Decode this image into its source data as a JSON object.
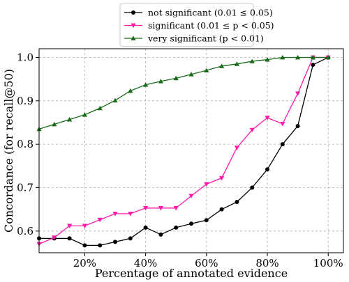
{
  "chart_data": {
    "type": "line",
    "xlabel": "Percentage of annotated evidence",
    "ylabel": "Concordance (for recall@50)",
    "xlim": [
      0.5,
      10.5
    ],
    "ylim": [
      0.55,
      1.02
    ],
    "x_ticks": [
      2,
      4,
      6,
      8,
      10
    ],
    "x_tick_labels": [
      "20%",
      "40%",
      "60%",
      "80%",
      "100%"
    ],
    "y_ticks": [
      0.6,
      0.7,
      0.8,
      0.9,
      1.0
    ],
    "y_tick_labels": [
      "0.6",
      "0.7",
      "0.8",
      "0.9",
      "1.0"
    ],
    "grid": true,
    "legend_position": "top-center, outside plot",
    "x": [
      0.5,
      1,
      1.5,
      2,
      2.5,
      3,
      3.5,
      4,
      4.5,
      5,
      5.5,
      6,
      6.5,
      7,
      7.5,
      8,
      8.5,
      9,
      9.5,
      10
    ],
    "series": [
      {
        "name": "not significant (0.01 ≤ 0.05)",
        "color": "#000000",
        "marker": "circle",
        "values": [
          0.583,
          0.583,
          0.583,
          0.567,
          0.567,
          0.575,
          0.583,
          0.608,
          0.592,
          0.608,
          0.617,
          0.625,
          0.65,
          0.667,
          0.7,
          0.742,
          0.8,
          0.842,
          0.983,
          1.0
        ]
      },
      {
        "name": "significant (0.01 ≤ p < 0.05)",
        "color": "#ff1aa8",
        "marker": "triangle-down",
        "values": [
          0.57,
          0.585,
          0.612,
          0.612,
          0.626,
          0.64,
          0.64,
          0.653,
          0.653,
          0.653,
          0.681,
          0.708,
          0.722,
          0.792,
          0.833,
          0.861,
          0.847,
          0.917,
          1.0,
          1.0
        ]
      },
      {
        "name": "very significant (p < 0.01)",
        "color": "#1a6b1a",
        "marker": "triangle-up",
        "values": [
          0.835,
          0.846,
          0.857,
          0.868,
          0.883,
          0.901,
          0.923,
          0.937,
          0.945,
          0.952,
          0.961,
          0.97,
          0.98,
          0.985,
          0.991,
          0.995,
          1.0,
          1.0,
          1.0,
          1.0
        ]
      }
    ]
  }
}
